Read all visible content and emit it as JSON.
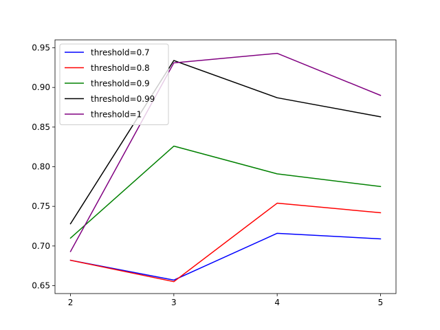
{
  "chart_data": {
    "type": "line",
    "x": [
      2,
      3,
      4,
      5
    ],
    "xticks": [
      "2",
      "3",
      "4",
      "5"
    ],
    "xlim": [
      1.85,
      5.15
    ],
    "ylim": [
      0.64,
      0.96
    ],
    "yticks": [
      "0.65",
      "0.70",
      "0.75",
      "0.80",
      "0.85",
      "0.90",
      "0.95"
    ],
    "ytick_values": [
      0.65,
      0.7,
      0.75,
      0.8,
      0.85,
      0.9,
      0.95
    ],
    "grid": false,
    "legend_position": "top-left",
    "series": [
      {
        "name": "threshold=0.7",
        "color": "#0000ff",
        "values": [
          0.682,
          0.657,
          0.716,
          0.709
        ]
      },
      {
        "name": "threshold=0.8",
        "color": "#ff0000",
        "values": [
          0.682,
          0.655,
          0.754,
          0.742
        ]
      },
      {
        "name": "threshold=0.9",
        "color": "#008000",
        "values": [
          0.71,
          0.826,
          0.791,
          0.775
        ]
      },
      {
        "name": "threshold=0.99",
        "color": "#000000",
        "values": [
          0.728,
          0.934,
          0.887,
          0.863
        ]
      },
      {
        "name": "threshold=1",
        "color": "#800080",
        "values": [
          0.693,
          0.931,
          0.943,
          0.89
        ]
      }
    ]
  }
}
